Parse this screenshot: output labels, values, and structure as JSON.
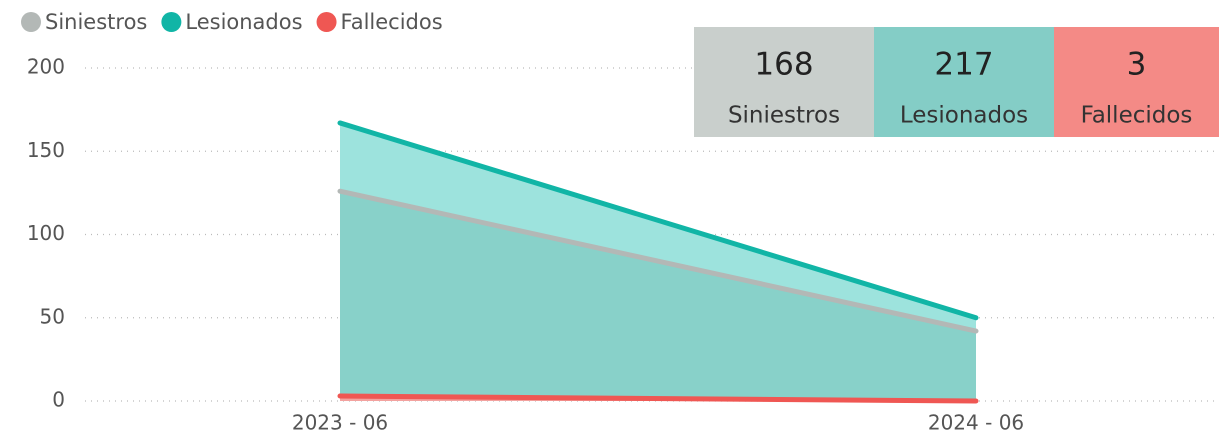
{
  "chart_data": {
    "type": "area",
    "categories": [
      "2023 - 06",
      "2024 - 06"
    ],
    "series": [
      {
        "name": "Siniestros",
        "color": "#b3b8b6",
        "fill": "#88d1c9",
        "values": [
          126,
          42
        ]
      },
      {
        "name": "Lesionados",
        "color": "#11b5a6",
        "fill": "#9de3dd",
        "values": [
          167,
          50
        ]
      },
      {
        "name": "Fallecidos",
        "color": "#ef5753",
        "fill": "#f3a29f",
        "values": [
          3,
          0
        ]
      }
    ],
    "ylim": [
      0,
      200
    ],
    "yticks": [
      0,
      50,
      100,
      150,
      200
    ],
    "grid": true
  },
  "cards": [
    {
      "value": "168",
      "label": "Siniestros",
      "color": "#c9cfcc"
    },
    {
      "value": "217",
      "label": "Lesionados",
      "color": "#84cdc6"
    },
    {
      "value": "3",
      "label": "Fallecidos",
      "color": "#f48a86"
    }
  ]
}
